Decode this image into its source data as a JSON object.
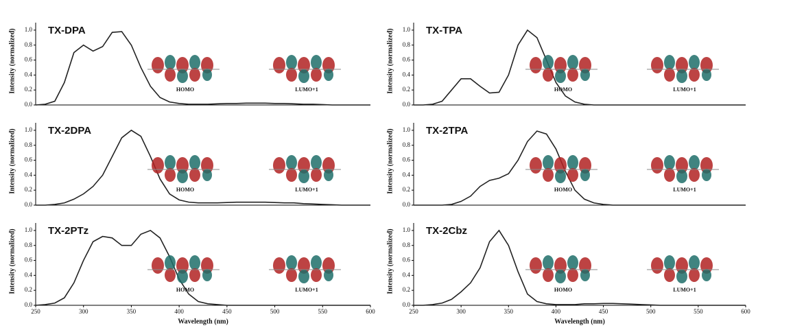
{
  "chart_data": [
    {
      "type": "line",
      "title": "TX-DPA",
      "y_label": "Intensity (normalized)",
      "annotations": [
        "HOMO",
        "LUMO+1"
      ],
      "x": [
        250,
        260,
        270,
        280,
        290,
        300,
        310,
        320,
        330,
        340,
        350,
        360,
        370,
        380,
        390,
        400,
        410,
        420,
        430,
        440,
        450,
        460,
        470,
        480,
        490,
        500,
        510,
        520,
        530,
        540,
        550,
        560,
        570,
        580,
        590,
        600
      ],
      "series": [
        {
          "name": "TX-DPA",
          "color": "#222222",
          "values": [
            0,
            0.01,
            0.05,
            0.3,
            0.7,
            0.8,
            0.72,
            0.78,
            0.97,
            0.98,
            0.8,
            0.5,
            0.25,
            0.1,
            0.04,
            0.02,
            0.01,
            0.01,
            0.01,
            0.015,
            0.02,
            0.02,
            0.025,
            0.025,
            0.025,
            0.02,
            0.02,
            0.015,
            0.01,
            0.01,
            0.005,
            0,
            0,
            0,
            0,
            0
          ]
        }
      ],
      "xlim": [
        250,
        600
      ],
      "ylim": [
        0,
        1.1
      ],
      "yticks": [
        {
          "value": 0,
          "label": "0.0"
        },
        0.2,
        0.4,
        0.6,
        0.8,
        {
          "value": 1,
          "label": "1.0"
        }
      ]
    },
    {
      "type": "line",
      "title": "TX-TPA",
      "y_label": "Intensity (normalized)",
      "annotations": [
        "HOMO",
        "LUMO+1"
      ],
      "x": [
        250,
        260,
        270,
        280,
        290,
        300,
        310,
        320,
        330,
        340,
        350,
        360,
        370,
        380,
        390,
        400,
        410,
        420,
        430,
        440,
        450,
        460,
        470,
        480,
        490,
        500,
        510,
        520,
        530,
        540,
        550,
        560,
        570,
        580,
        590,
        600
      ],
      "series": [
        {
          "name": "TX-TPA",
          "color": "#222222",
          "values": [
            0,
            0,
            0.01,
            0.05,
            0.2,
            0.35,
            0.35,
            0.25,
            0.16,
            0.17,
            0.4,
            0.8,
            1.0,
            0.9,
            0.6,
            0.3,
            0.12,
            0.04,
            0.01,
            0,
            0,
            0,
            0,
            0,
            0,
            0,
            0,
            0,
            0,
            0,
            0,
            0,
            0,
            0,
            0,
            0
          ]
        }
      ],
      "xlim": [
        250,
        600
      ],
      "ylim": [
        0,
        1.1
      ],
      "yticks": [
        {
          "value": 0,
          "label": "0.0"
        },
        0.2,
        0.4,
        0.6,
        0.8,
        {
          "value": 1,
          "label": "1.0"
        }
      ]
    },
    {
      "type": "line",
      "title": "TX-2DPA",
      "y_label": "Intensity (normalized)",
      "annotations": [
        "HOMO",
        "LUMO+1"
      ],
      "x": [
        250,
        260,
        270,
        280,
        290,
        300,
        310,
        320,
        330,
        340,
        350,
        360,
        370,
        380,
        390,
        400,
        410,
        420,
        430,
        440,
        450,
        460,
        470,
        480,
        490,
        500,
        510,
        520,
        530,
        540,
        550,
        560,
        570,
        580,
        590,
        600
      ],
      "series": [
        {
          "name": "TX-2DPA",
          "color": "#222222",
          "values": [
            0,
            0,
            0.01,
            0.03,
            0.08,
            0.15,
            0.25,
            0.4,
            0.65,
            0.9,
            1.0,
            0.92,
            0.65,
            0.35,
            0.15,
            0.07,
            0.04,
            0.03,
            0.03,
            0.03,
            0.035,
            0.04,
            0.04,
            0.04,
            0.04,
            0.035,
            0.03,
            0.03,
            0.02,
            0.015,
            0.01,
            0.005,
            0,
            0,
            0,
            0
          ]
        }
      ],
      "xlim": [
        250,
        600
      ],
      "ylim": [
        0,
        1.1
      ],
      "yticks": [
        {
          "value": 0,
          "label": "0.0"
        },
        0.2,
        0.4,
        0.6,
        0.8,
        {
          "value": 1,
          "label": "1.0"
        }
      ]
    },
    {
      "type": "line",
      "title": "TX-2TPA",
      "y_label": "Intensity (normalized)",
      "annotations": [
        "HOMO",
        "LUMO+1"
      ],
      "x": [
        250,
        260,
        270,
        280,
        290,
        300,
        310,
        320,
        330,
        340,
        350,
        360,
        370,
        380,
        390,
        400,
        410,
        420,
        430,
        440,
        450,
        460,
        470,
        480,
        490,
        500,
        510,
        520,
        530,
        540,
        550,
        560,
        570,
        580,
        590,
        600
      ],
      "series": [
        {
          "name": "TX-2TPA",
          "color": "#222222",
          "values": [
            0,
            0,
            0,
            0,
            0.01,
            0.05,
            0.12,
            0.25,
            0.33,
            0.36,
            0.42,
            0.6,
            0.85,
            0.99,
            0.95,
            0.75,
            0.45,
            0.2,
            0.08,
            0.03,
            0.01,
            0,
            0,
            0,
            0,
            0,
            0,
            0,
            0,
            0,
            0,
            0,
            0,
            0,
            0,
            0
          ]
        }
      ],
      "xlim": [
        250,
        600
      ],
      "ylim": [
        0,
        1.1
      ],
      "yticks": [
        {
          "value": 0,
          "label": "0.0"
        },
        0.2,
        0.4,
        0.6,
        0.8,
        {
          "value": 1,
          "label": "1.0"
        }
      ]
    },
    {
      "type": "line",
      "title": "TX-2PTz",
      "y_label": "Intensity (normalized)",
      "x_label": "Wavelength (nm)",
      "annotations": [
        "HOMO",
        "LUMO+1"
      ],
      "x": [
        250,
        260,
        270,
        280,
        290,
        300,
        310,
        320,
        330,
        340,
        350,
        360,
        370,
        380,
        390,
        400,
        410,
        420,
        430,
        440,
        450,
        460,
        470,
        480,
        490,
        500,
        510,
        520,
        530,
        540,
        550,
        560,
        570,
        580,
        590,
        600
      ],
      "series": [
        {
          "name": "TX-2PTz",
          "color": "#222222",
          "values": [
            0,
            0.01,
            0.03,
            0.1,
            0.3,
            0.6,
            0.85,
            0.92,
            0.9,
            0.8,
            0.8,
            0.95,
            1.0,
            0.9,
            0.65,
            0.35,
            0.15,
            0.05,
            0.02,
            0.01,
            0,
            0,
            0,
            0,
            0,
            0,
            0,
            0,
            0,
            0,
            0,
            0,
            0,
            0,
            0,
            0
          ]
        }
      ],
      "xlim": [
        250,
        600
      ],
      "xticks": [
        250,
        300,
        350,
        400,
        450,
        500,
        550,
        600
      ],
      "ylim": [
        0,
        1.1
      ],
      "yticks": [
        {
          "value": 0,
          "label": "0.0"
        },
        0.2,
        0.4,
        0.6,
        0.8,
        {
          "value": 1,
          "label": "1.0"
        }
      ]
    },
    {
      "type": "line",
      "title": "TX-2Cbz",
      "y_label": "Intensity (normalized)",
      "x_label": "Wavelength (nm)",
      "annotations": [
        "HOMO",
        "LUMO+1"
      ],
      "x": [
        250,
        260,
        270,
        280,
        290,
        300,
        310,
        320,
        330,
        340,
        350,
        360,
        370,
        380,
        390,
        400,
        410,
        420,
        430,
        440,
        450,
        460,
        470,
        480,
        490,
        500,
        510,
        520,
        530,
        540,
        550,
        560,
        570,
        580,
        590,
        600
      ],
      "series": [
        {
          "name": "TX-2Cbz",
          "color": "#222222",
          "values": [
            0,
            0,
            0.01,
            0.03,
            0.08,
            0.18,
            0.3,
            0.5,
            0.85,
            1.0,
            0.8,
            0.45,
            0.15,
            0.05,
            0.02,
            0.01,
            0.01,
            0.01,
            0.02,
            0.02,
            0.025,
            0.025,
            0.02,
            0.015,
            0.01,
            0.005,
            0,
            0,
            0,
            0,
            0,
            0,
            0,
            0,
            0,
            0
          ]
        }
      ],
      "xlim": [
        250,
        600
      ],
      "xticks": [
        250,
        300,
        350,
        400,
        450,
        500,
        550,
        600
      ],
      "ylim": [
        0,
        1.1
      ],
      "yticks": [
        {
          "value": 0,
          "label": "0.0"
        },
        0.2,
        0.4,
        0.6,
        0.8,
        {
          "value": 1,
          "label": "1.0"
        }
      ]
    }
  ]
}
